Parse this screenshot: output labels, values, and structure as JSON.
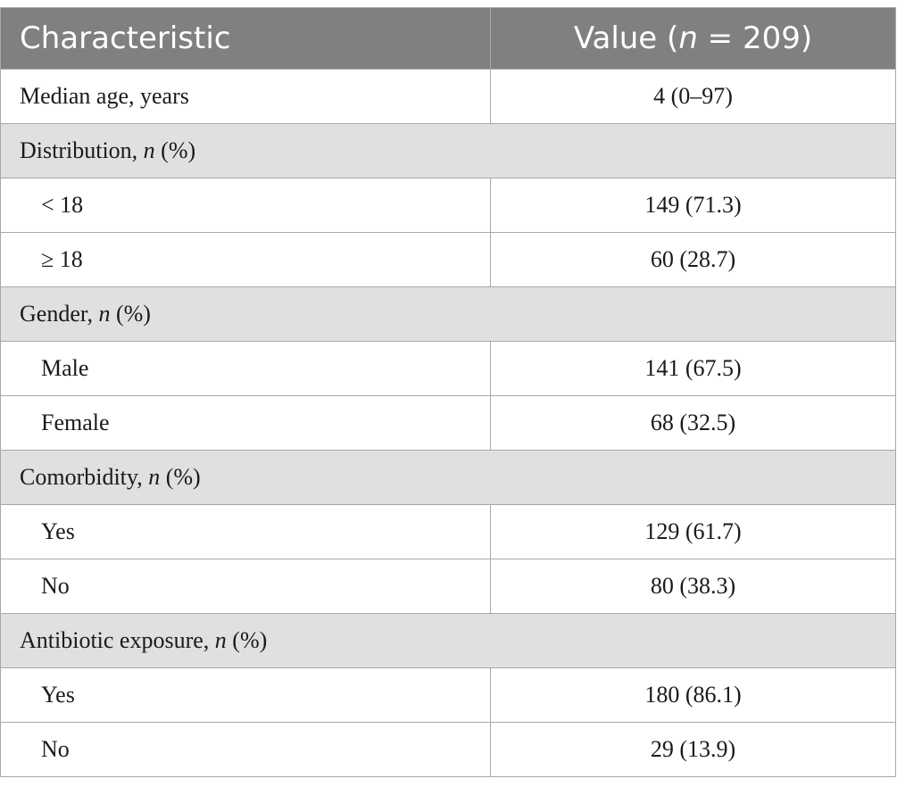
{
  "table": {
    "header": {
      "characteristic": "Characteristic",
      "value_prefix": "Value (",
      "value_n": "n",
      "value_suffix": " = 209)"
    },
    "rows": [
      {
        "label": "Median age, years",
        "value": "4 (0–97)"
      },
      {
        "group_prefix": "Distribution, ",
        "group_n": "n",
        "group_suffix": " (%)"
      },
      {
        "label": "< 18",
        "value": "149 (71.3)"
      },
      {
        "label": "≥ 18",
        "value": "60 (28.7)"
      },
      {
        "group_prefix": "Gender, ",
        "group_n": "n",
        "group_suffix": " (%)"
      },
      {
        "label": "Male",
        "value": "141 (67.5)"
      },
      {
        "label": "Female",
        "value": "68 (32.5)"
      },
      {
        "group_prefix": "Comorbidity, ",
        "group_n": "n",
        "group_suffix": " (%)"
      },
      {
        "label": "Yes",
        "value": "129 (61.7)"
      },
      {
        "label": "No",
        "value": "80 (38.3)"
      },
      {
        "group_prefix": "Antibiotic exposure, ",
        "group_n": "n",
        "group_suffix": " (%)"
      },
      {
        "label": "Yes",
        "value": "180 (86.1)"
      },
      {
        "label": "No",
        "value": "29 (13.9)"
      }
    ]
  }
}
